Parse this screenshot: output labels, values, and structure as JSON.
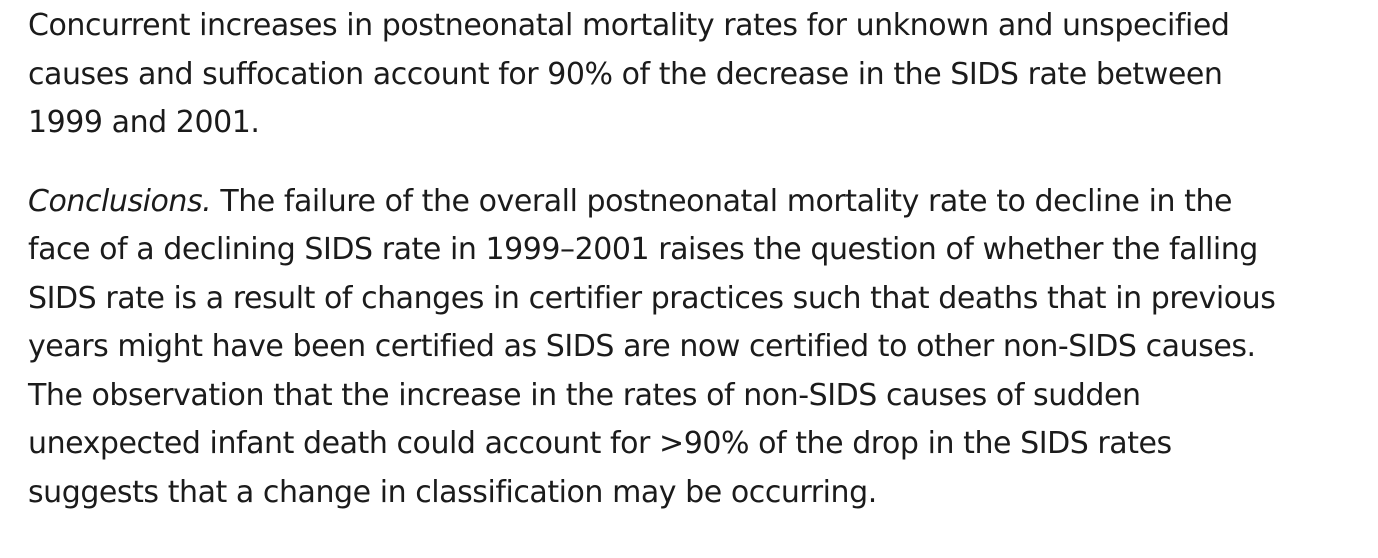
{
  "paragraph_1": {
    "lines": [
      "Concurrent increases in postneonatal mortality rates for unknown and unspecified",
      "causes and suffocation account for 90% of the decrease in the SIDS rate between",
      "1999 and 2001."
    ]
  },
  "paragraph_2": {
    "label": "Conclusions.",
    "first_line_rest": " The failure of the overall postneonatal mortality rate to decline in the",
    "lines": [
      "face of a declining SIDS rate in 1999–2001 raises the question of whether the falling",
      "SIDS rate is a result of changes in certifier practices such that deaths that in previous",
      "years might have been certified as SIDS are now certified to other non-SIDS causes.",
      "The observation that the increase in the rates of non-SIDS causes of sudden",
      "unexpected infant death could account for >90% of the drop in the SIDS rates",
      "suggests that a change in classification may be occurring."
    ]
  }
}
